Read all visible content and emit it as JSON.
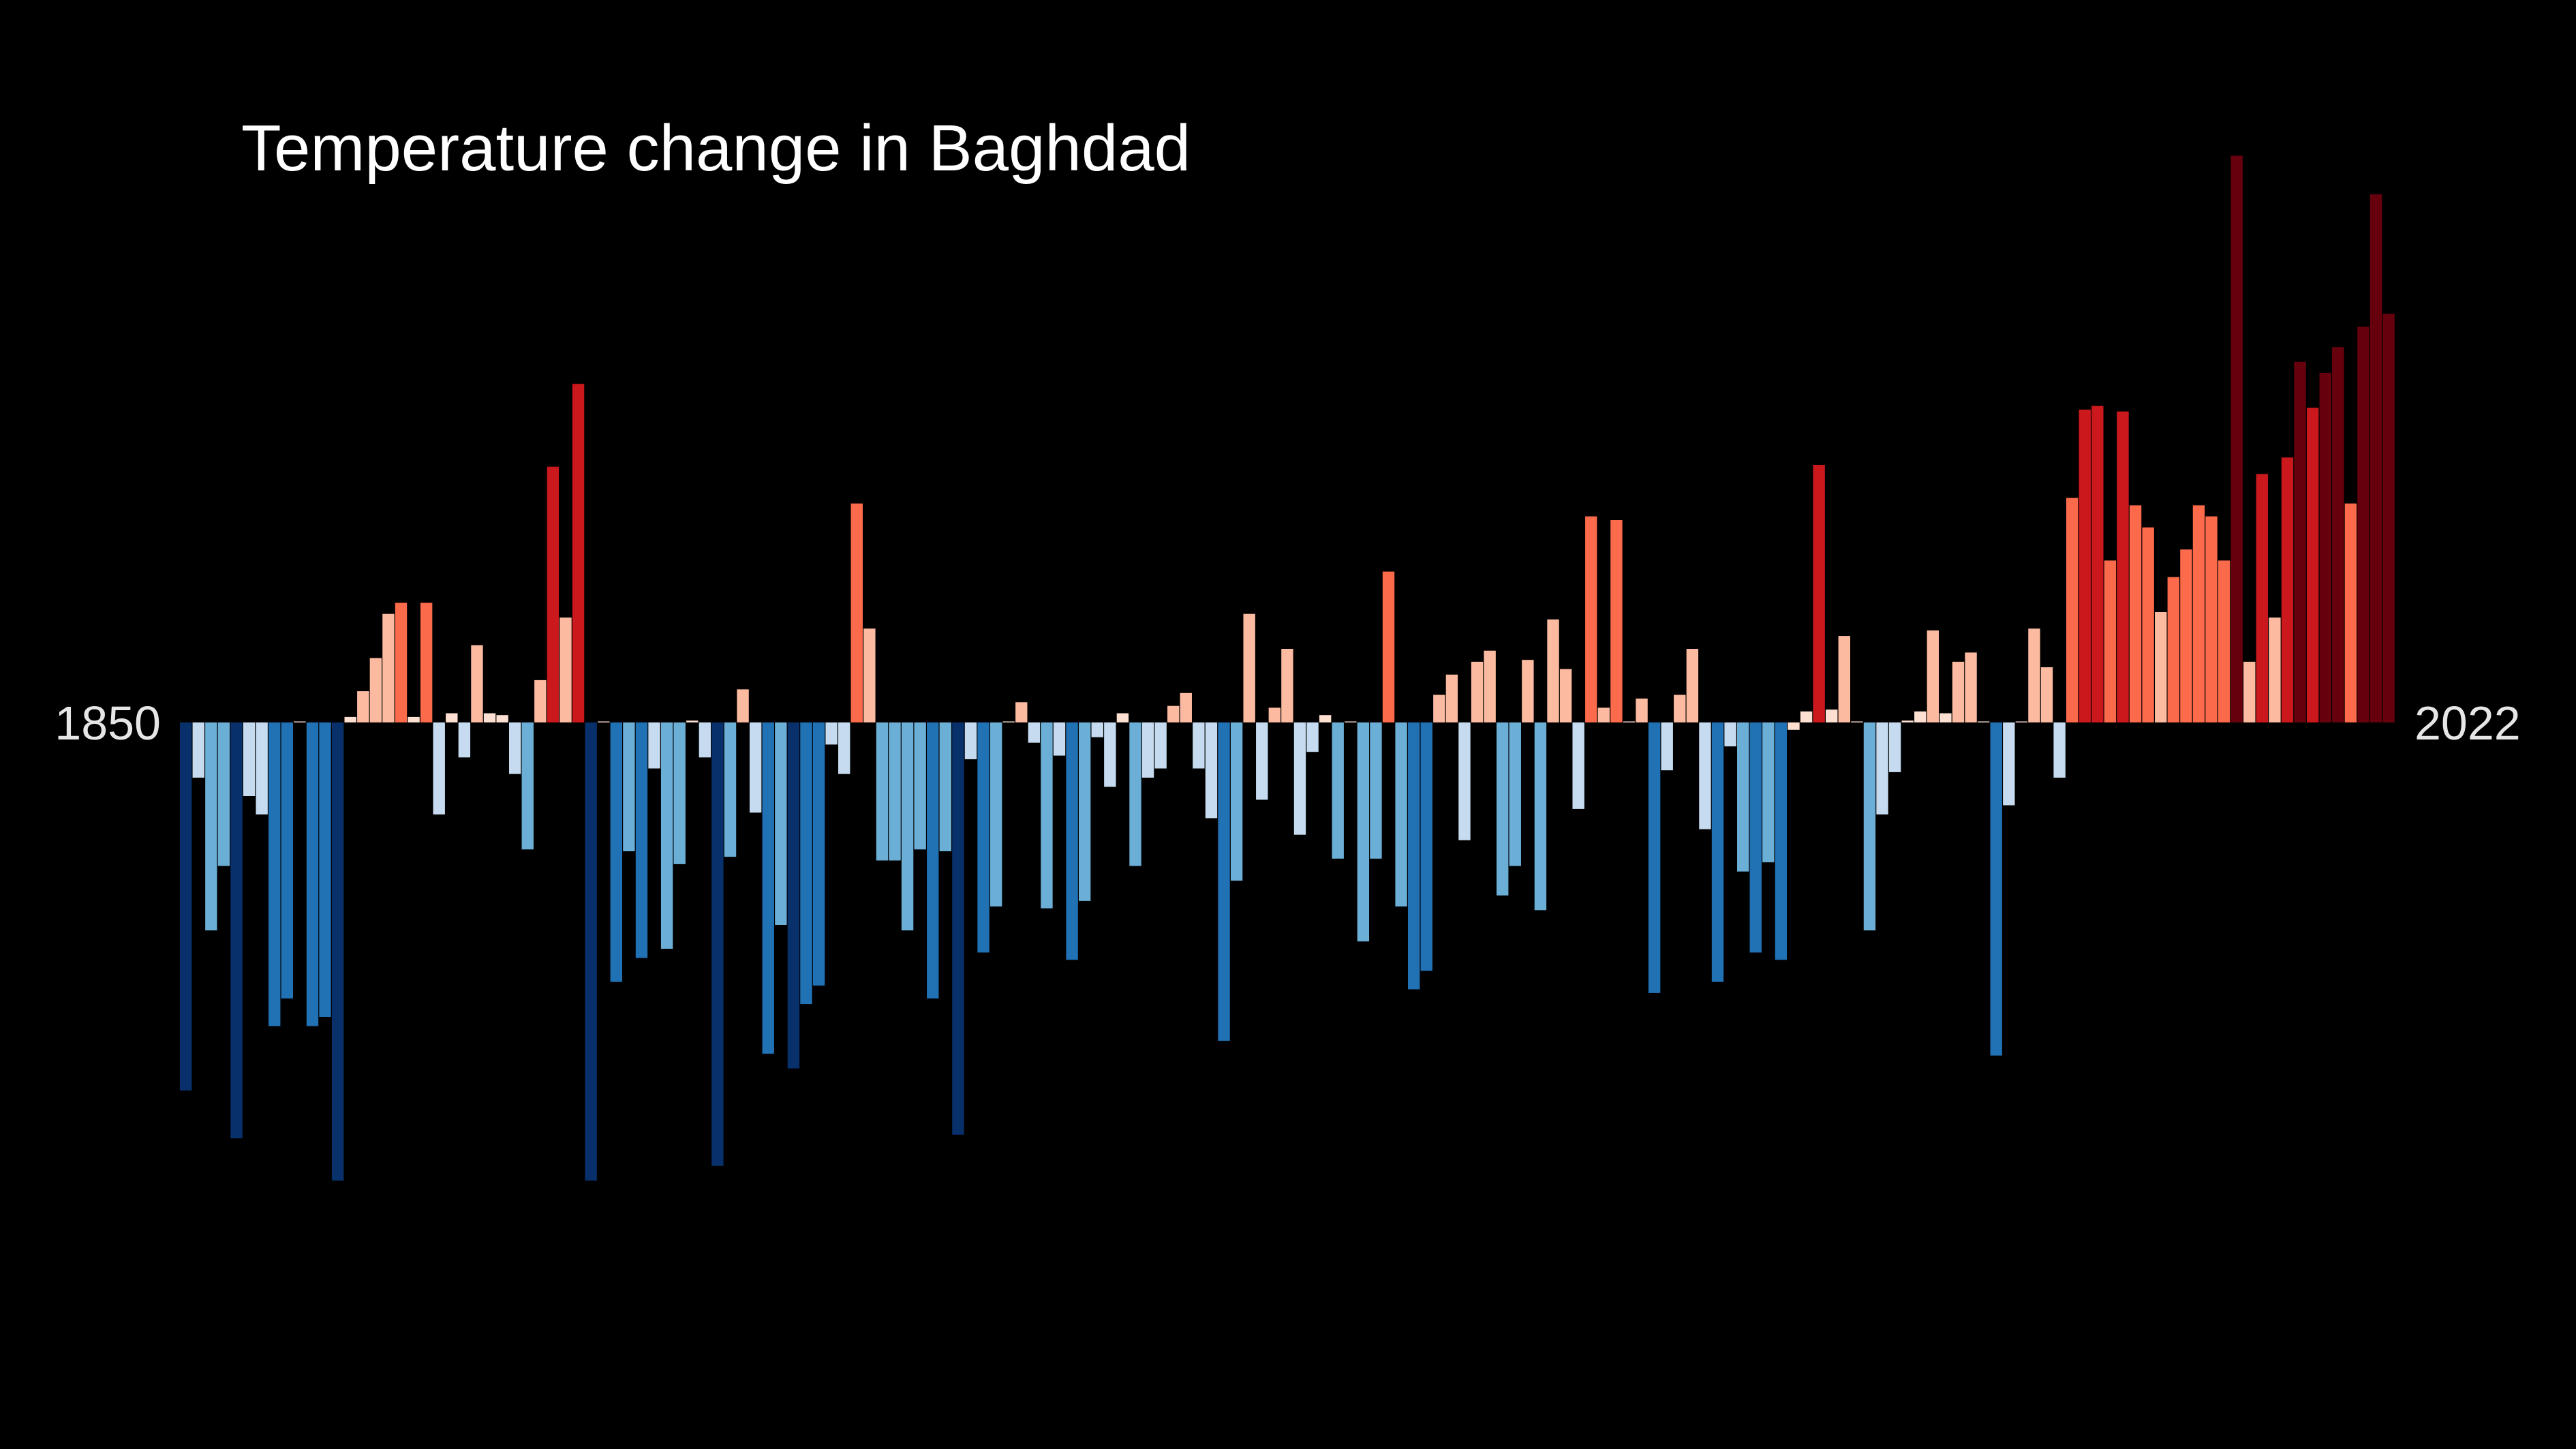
{
  "chart_data": {
    "type": "bar",
    "title": "Temperature change in Baghdad",
    "start_label": "1850",
    "end_label": "2022",
    "x_start": 1850,
    "x_end": 2022,
    "ylabel": "",
    "xlabel": "",
    "ylim": [
      -2.5,
      3.0
    ],
    "grid": false,
    "legend": "none",
    "color_scale": {
      "cold_extreme": "#08306b",
      "cold": "#2171b5",
      "cool": "#6baed6",
      "cool_light": "#c6dbef",
      "neutral": "#fee0d2",
      "warm_light": "#fcbba1",
      "warm": "#fb6a4a",
      "hot": "#cb181d",
      "hot_extreme": "#67000d",
      "background": "#000000"
    },
    "values": [
      -2.0,
      -0.3,
      -1.13,
      -0.78,
      -2.26,
      -0.4,
      -0.5,
      -1.65,
      -1.5,
      0.0,
      -1.65,
      -1.6,
      -2.49,
      0.03,
      0.17,
      0.35,
      0.59,
      0.65,
      0.03,
      0.65,
      -0.5,
      0.05,
      -0.19,
      0.42,
      0.05,
      0.04,
      -0.28,
      -0.69,
      0.23,
      1.39,
      0.57,
      1.84,
      -2.49,
      0.0,
      -1.41,
      -0.7,
      -1.28,
      -0.25,
      -1.23,
      -0.77,
      0.01,
      -0.19,
      -2.41,
      -0.73,
      0.18,
      -0.49,
      -1.8,
      -1.1,
      -1.88,
      -1.53,
      -1.43,
      -0.12,
      -0.28,
      1.19,
      0.51,
      -0.75,
      -0.75,
      -1.13,
      -0.69,
      -1.5,
      -0.7,
      -2.24,
      -0.2,
      -1.25,
      -1.0,
      0.0,
      0.11,
      -0.11,
      -1.01,
      -0.18,
      -1.29,
      -0.97,
      -0.08,
      -0.35,
      0.05,
      -0.78,
      -0.3,
      -0.25,
      0.09,
      0.16,
      -0.25,
      -0.52,
      -1.73,
      -0.86,
      0.59,
      -0.42,
      0.08,
      0.4,
      -0.61,
      -0.16,
      0.04,
      -0.74,
      0.0,
      -1.19,
      -0.74,
      0.82,
      -1.0,
      -1.45,
      -1.35,
      0.15,
      0.26,
      -0.64,
      0.33,
      0.39,
      -0.94,
      -0.78,
      0.34,
      -1.02,
      0.56,
      0.29,
      -0.47,
      1.12,
      0.08,
      1.1,
      0.0,
      0.13,
      -1.47,
      -0.26,
      0.15,
      0.4,
      -0.58,
      -1.41,
      -0.13,
      -0.81,
      -1.25,
      -0.76,
      -1.29,
      -0.04,
      0.06,
      1.4,
      0.07,
      0.47,
      0.0,
      -1.13,
      -0.5,
      -0.27,
      0.01,
      0.06,
      0.5,
      0.05,
      0.33,
      0.38,
      0.0,
      -1.81,
      -0.45,
      0.0,
      0.51,
      0.3,
      -0.3,
      1.22,
      1.7,
      1.72,
      0.88,
      1.69,
      1.18,
      1.06,
      0.6,
      0.79,
      0.94,
      1.18,
      1.12,
      0.88,
      3.08,
      0.33,
      1.35,
      0.57,
      1.44,
      1.96,
      1.71,
      1.9,
      2.04,
      1.19,
      2.15,
      2.87,
      2.22
    ]
  }
}
